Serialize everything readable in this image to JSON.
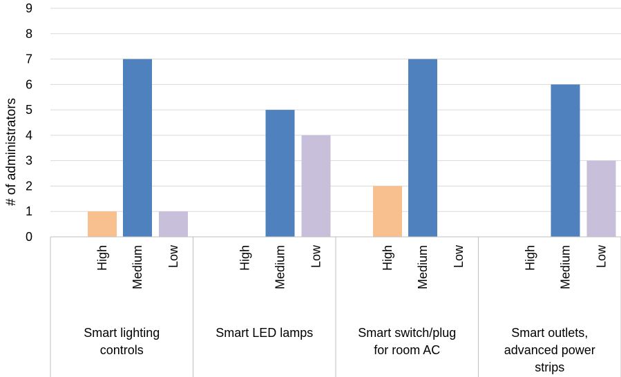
{
  "chart_data": {
    "type": "bar",
    "ylabel": "# of administrators",
    "ylim": [
      0,
      9
    ],
    "yticks": [
      "0",
      "1",
      "2",
      "3",
      "4",
      "5",
      "6",
      "7",
      "8",
      "9"
    ],
    "grid": true,
    "subcategories": [
      "High",
      "Medium",
      "Low"
    ],
    "subcategory_colors": [
      "#f8c08f",
      "#4e81bd",
      "#c8bfdb"
    ],
    "groups": [
      {
        "label_lines": [
          "Smart lighting",
          "controls"
        ],
        "values": [
          1,
          7,
          1
        ]
      },
      {
        "label_lines": [
          "Smart LED lamps"
        ],
        "values": [
          0,
          5,
          4
        ]
      },
      {
        "label_lines": [
          "Smart switch/plug",
          "for room AC"
        ],
        "values": [
          2,
          7,
          0
        ]
      },
      {
        "label_lines": [
          "Smart outlets,",
          "advanced power",
          "strips"
        ],
        "values": [
          0,
          6,
          3
        ]
      }
    ]
  }
}
